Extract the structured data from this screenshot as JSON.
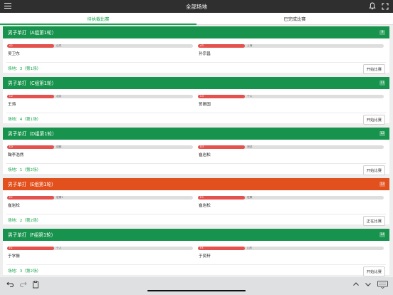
{
  "header": {
    "title": "全部场地"
  },
  "tabs": [
    {
      "label": "待执裁比赛",
      "active": true
    },
    {
      "label": "已完成比赛",
      "active": false
    }
  ],
  "matches": [
    {
      "title": "男子单打（A组第1轮）",
      "count": "9",
      "color": "green",
      "left": {
        "seed": "A2",
        "club": "山东",
        "name": "吴卫东"
      },
      "right": {
        "seed": "A3",
        "club": "上海",
        "name": "孙宗昌"
      },
      "venue": "场地：3（第1场）",
      "action": "开始比赛"
    },
    {
      "title": "男子单打（C组第1轮）",
      "count": "11",
      "color": "green",
      "left": {
        "seed": "C2",
        "club": "北京",
        "name": "王涛"
      },
      "right": {
        "seed": "C3",
        "club": "个人",
        "name": "贺振国"
      },
      "venue": "场地：4（第1场）",
      "action": "开始比赛"
    },
    {
      "title": "男子单打（D组第1轮）",
      "count": "12",
      "color": "green",
      "left": {
        "seed": "D2",
        "club": "成都",
        "name": "鞠李浩然"
      },
      "right": {
        "seed": "D3",
        "club": "测试",
        "name": "崔岩松"
      },
      "venue": "场地：1（第2场）",
      "action": "开始比赛"
    },
    {
      "title": "男子单打（E组第1轮）",
      "count": "13",
      "color": "orange",
      "left": {
        "seed": "E2",
        "club": "宏果1",
        "name": "崔岩松"
      },
      "right": {
        "seed": "E3",
        "club": "宏果",
        "name": "崔岩松"
      },
      "venue": "场地：2（第2场）",
      "action": "正在比赛"
    },
    {
      "title": "男子单打（F组第1轮）",
      "count": "14",
      "color": "green",
      "left": {
        "seed": "F2",
        "club": "个人",
        "name": "于学振"
      },
      "right": {
        "seed": "F3",
        "club": "山东",
        "name": "于奕轩"
      },
      "venue": "场地：3（第2场）",
      "action": "开始比赛"
    }
  ],
  "icons": {
    "menu": "menu-icon",
    "bell": "bell-icon",
    "expand": "expand-icon",
    "undo": "undo-icon",
    "redo": "redo-icon",
    "paste": "clipboard-icon",
    "up": "chevron-up-icon",
    "down": "chevron-down-icon",
    "keyboard": "keyboard-icon"
  }
}
